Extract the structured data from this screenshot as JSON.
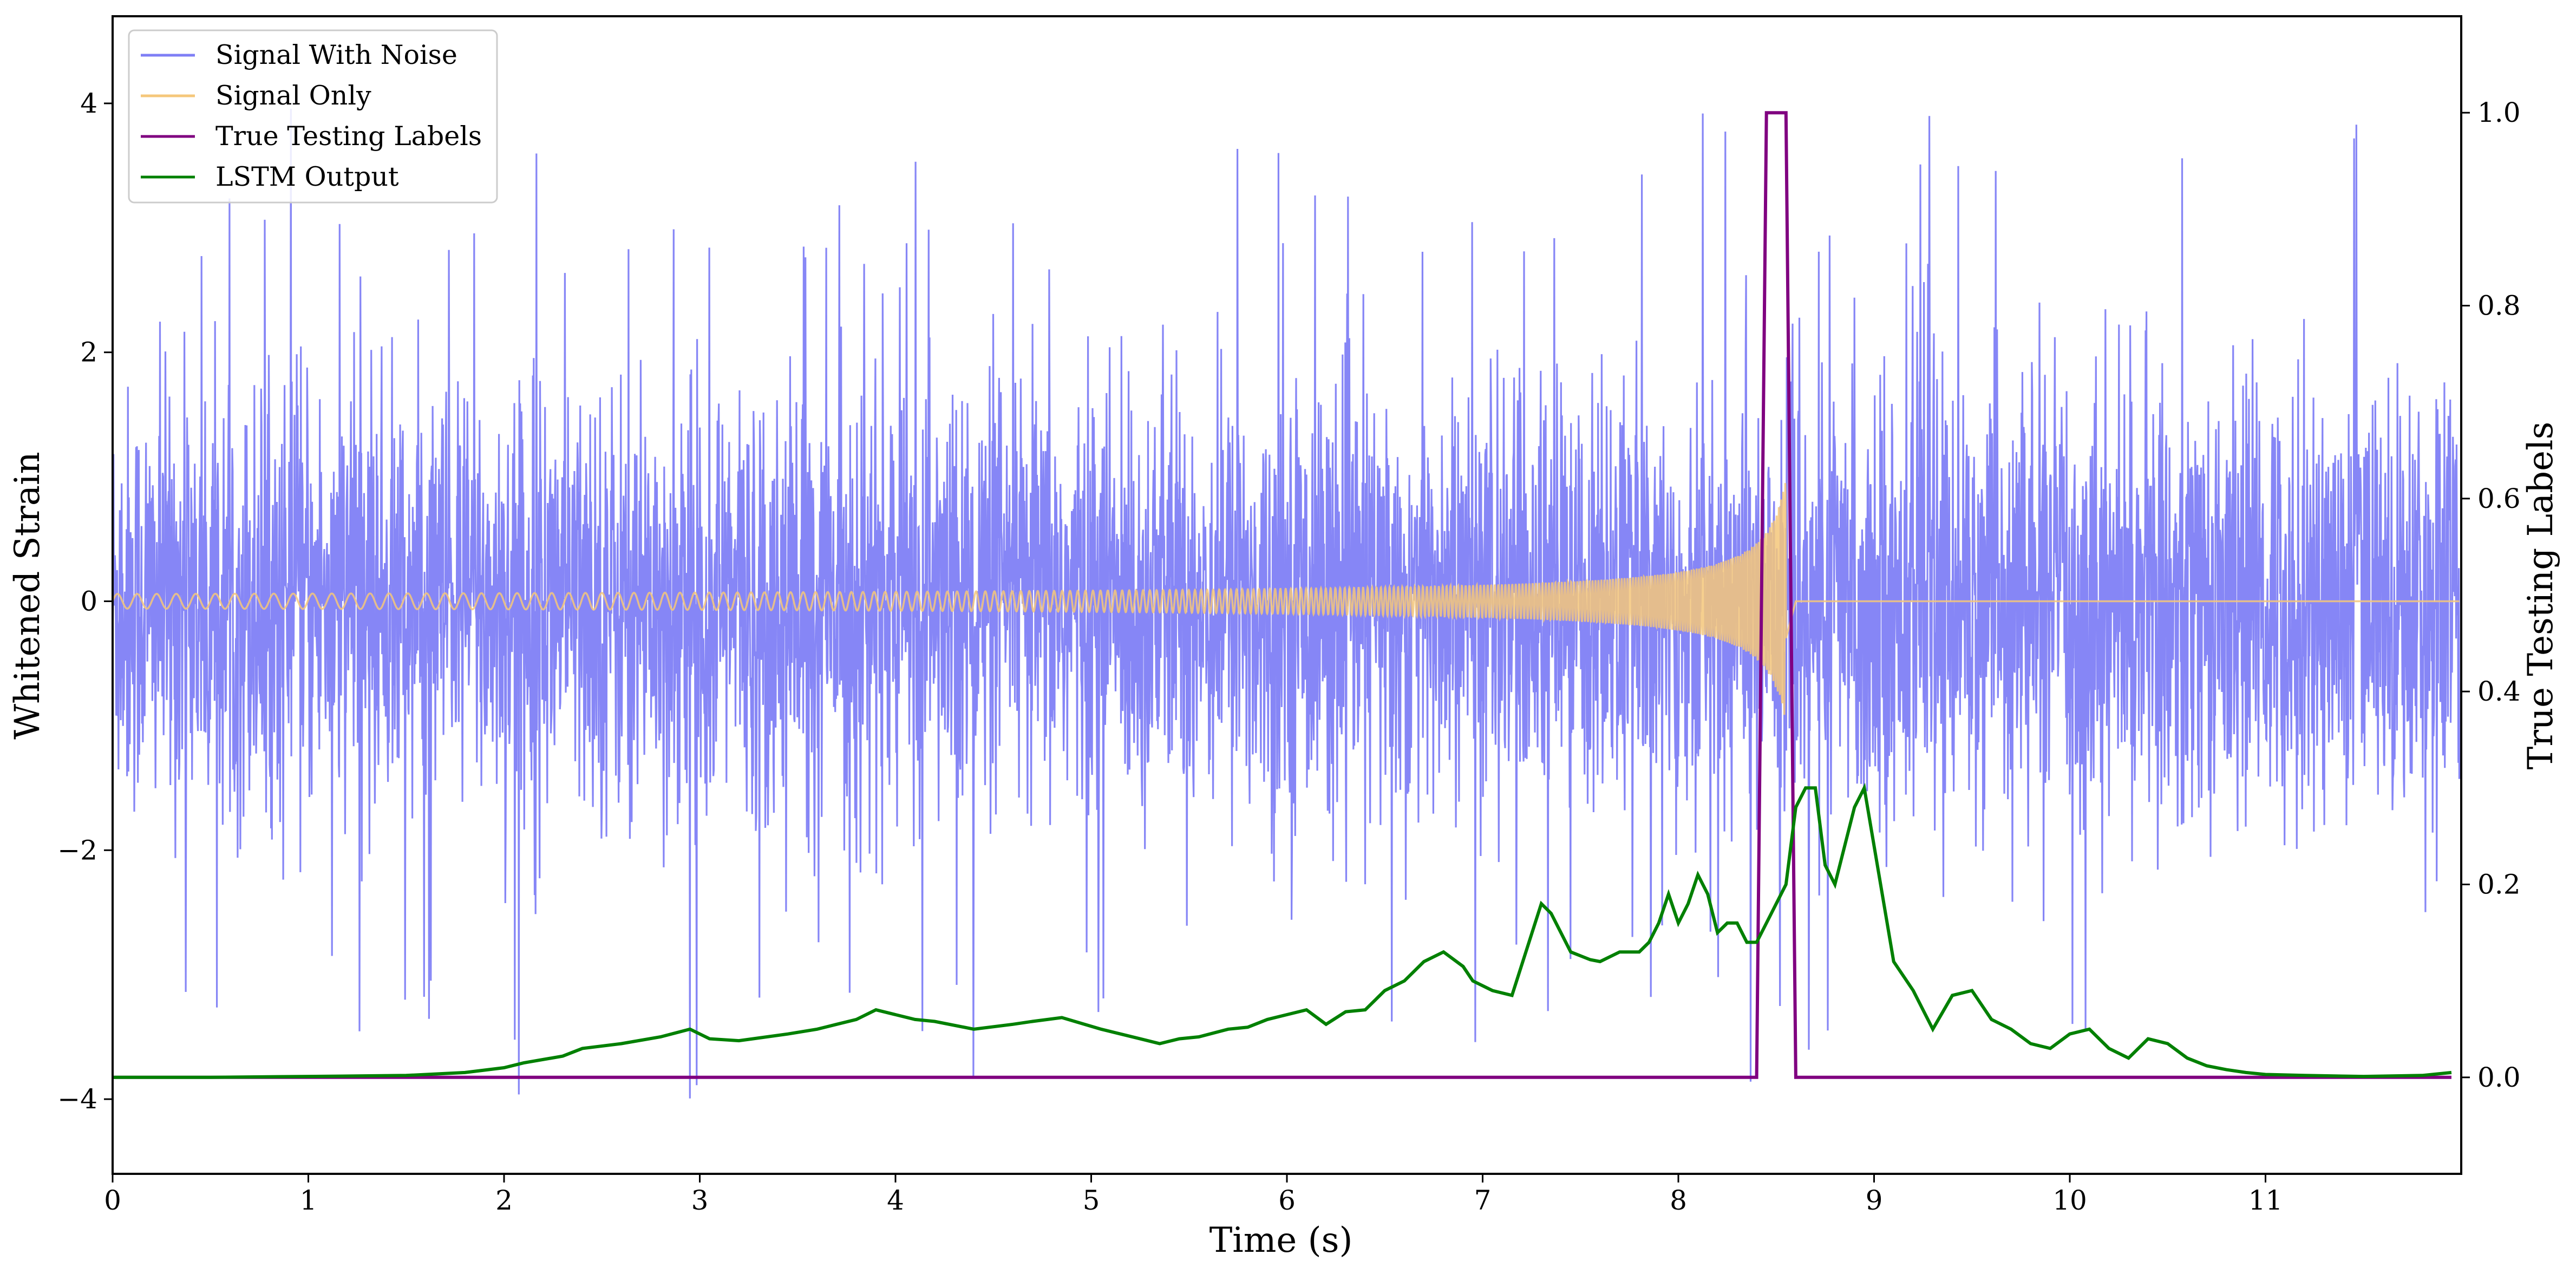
{
  "chart_data": {
    "type": "line",
    "xlabel": "Time (s)",
    "ylabel": "Whitened Strain",
    "y2label": "True Testing Labels",
    "xlim": [
      0,
      12
    ],
    "ylim": [
      -4.6,
      4.7
    ],
    "y2lim": [
      -0.1,
      1.1
    ],
    "grid": false,
    "legend_position": "top-left",
    "x_ticks": [
      0,
      1,
      2,
      3,
      4,
      5,
      6,
      7,
      8,
      9,
      10,
      11
    ],
    "x_tick_labels": [
      "0",
      "1",
      "2",
      "3",
      "4",
      "5",
      "6",
      "7",
      "8",
      "9",
      "10",
      "11"
    ],
    "y_ticks": [
      4,
      2,
      0,
      -2,
      -4
    ],
    "y_tick_labels": [
      "4",
      "2",
      "0",
      "−2",
      "−4"
    ],
    "y2_ticks": [
      1.0,
      0.8,
      0.6,
      0.4,
      0.2,
      0.0
    ],
    "y2_tick_labels": [
      "1.0",
      "0.8",
      "0.6",
      "0.4",
      "0.2",
      "0.0"
    ],
    "series": [
      {
        "name": "Signal With Noise",
        "color": "#7f7ff5",
        "axis": "left",
        "description_values": {
          "noise_envelope_approx": [
            -2.5,
            2.5
          ],
          "max_spike": 4.25,
          "min_spike": -4.2
        }
      },
      {
        "name": "Signal Only",
        "color": "#f5c77a",
        "axis": "left",
        "chirp": {
          "t_start": 0,
          "t_merge": 8.55,
          "amp_start": 0.03,
          "amp_peak": 1.0,
          "freq_start_hz": 10,
          "freq_end_hz": 90
        }
      },
      {
        "name": "True Testing Labels",
        "color": "#800080",
        "axis": "right",
        "x": [
          0,
          8.4,
          8.45,
          8.55,
          8.6,
          11.95
        ],
        "values": [
          0.0,
          0.0,
          1.0,
          1.0,
          0.0,
          0.0
        ]
      },
      {
        "name": "LSTM Output",
        "color": "#008000",
        "axis": "right",
        "x": [
          0,
          0.5,
          1.0,
          1.5,
          1.8,
          2.0,
          2.1,
          2.3,
          2.4,
          2.6,
          2.8,
          2.95,
          3.05,
          3.2,
          3.45,
          3.6,
          3.7,
          3.8,
          3.9,
          4.0,
          4.1,
          4.2,
          4.4,
          4.6,
          4.7,
          4.85,
          4.95,
          5.05,
          5.15,
          5.25,
          5.35,
          5.45,
          5.55,
          5.7,
          5.8,
          5.9,
          6.0,
          6.1,
          6.2,
          6.3,
          6.4,
          6.5,
          6.6,
          6.7,
          6.8,
          6.9,
          6.95,
          7.05,
          7.15,
          7.3,
          7.35,
          7.45,
          7.55,
          7.6,
          7.7,
          7.8,
          7.85,
          7.9,
          7.95,
          8.0,
          8.05,
          8.1,
          8.15,
          8.2,
          8.25,
          8.3,
          8.35,
          8.4,
          8.45,
          8.55,
          8.6,
          8.65,
          8.7,
          8.75,
          8.8,
          8.9,
          8.95,
          9.0,
          9.1,
          9.2,
          9.3,
          9.4,
          9.5,
          9.6,
          9.7,
          9.8,
          9.9,
          10.0,
          10.1,
          10.2,
          10.3,
          10.4,
          10.5,
          10.6,
          10.7,
          10.8,
          10.9,
          11.0,
          11.2,
          11.5,
          11.8,
          11.95
        ],
        "values": [
          0.0,
          0.0,
          0.001,
          0.002,
          0.005,
          0.01,
          0.015,
          0.022,
          0.03,
          0.035,
          0.042,
          0.05,
          0.04,
          0.038,
          0.045,
          0.05,
          0.055,
          0.06,
          0.07,
          0.065,
          0.06,
          0.058,
          0.05,
          0.055,
          0.058,
          0.062,
          0.056,
          0.05,
          0.045,
          0.04,
          0.035,
          0.04,
          0.042,
          0.05,
          0.052,
          0.06,
          0.065,
          0.07,
          0.055,
          0.068,
          0.07,
          0.09,
          0.1,
          0.12,
          0.13,
          0.115,
          0.1,
          0.09,
          0.085,
          0.18,
          0.17,
          0.13,
          0.122,
          0.12,
          0.13,
          0.13,
          0.14,
          0.16,
          0.19,
          0.16,
          0.18,
          0.21,
          0.19,
          0.15,
          0.16,
          0.16,
          0.14,
          0.14,
          0.16,
          0.2,
          0.28,
          0.3,
          0.3,
          0.22,
          0.2,
          0.28,
          0.3,
          0.24,
          0.12,
          0.09,
          0.05,
          0.085,
          0.09,
          0.06,
          0.05,
          0.035,
          0.03,
          0.045,
          0.05,
          0.03,
          0.02,
          0.04,
          0.035,
          0.02,
          0.012,
          0.008,
          0.005,
          0.003,
          0.002,
          0.001,
          0.002,
          0.005
        ]
      }
    ]
  }
}
